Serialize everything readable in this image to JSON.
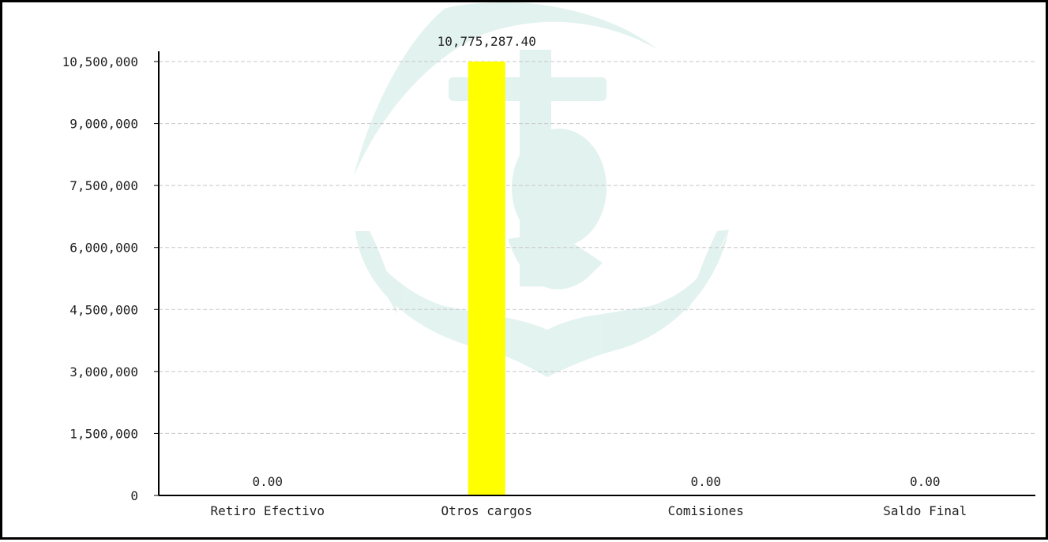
{
  "chart_data": {
    "type": "bar",
    "title": "",
    "xlabel": "",
    "ylabel": "",
    "categories": [
      "Retiro Efectivo",
      "Otros cargos",
      "Comisiones",
      "Saldo Final"
    ],
    "values": [
      0,
      10775287.4,
      0,
      0
    ],
    "data_labels": [
      "0.00",
      "10,775,287.40",
      "0.00",
      "0.00"
    ],
    "ylim": [
      0,
      10500000
    ],
    "yticks": [
      0,
      1500000,
      3000000,
      4500000,
      6000000,
      7500000,
      9000000,
      10500000
    ],
    "ytick_labels": [
      "0",
      "1,500,000",
      "3,000,000",
      "4,500,000",
      "6,000,000",
      "7,500,000",
      "9,000,000",
      "10,500,000"
    ],
    "grid": true,
    "bar_color": "#ffff00",
    "grid_color": "#c8c8c8",
    "watermark": "anchor-watermark"
  }
}
